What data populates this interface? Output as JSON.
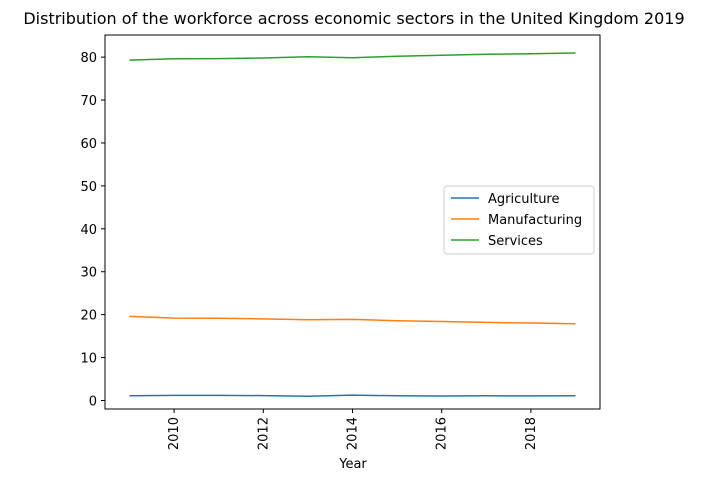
{
  "chart_data": {
    "type": "line",
    "title": "Distribution of the workforce across economic sectors in the United Kingdom 2019",
    "xlabel": "Year",
    "ylabel": "",
    "x": [
      2009,
      2010,
      2011,
      2012,
      2013,
      2014,
      2015,
      2016,
      2017,
      2018,
      2019
    ],
    "xlim": [
      2008.45,
      2019.55
    ],
    "ylim": [
      -1.98,
      85.15
    ],
    "x_ticks": [
      2010,
      2012,
      2014,
      2016,
      2018
    ],
    "y_ticks": [
      0,
      10,
      20,
      30,
      40,
      50,
      60,
      70,
      80
    ],
    "x_tick_rotation": "vertical",
    "grid": false,
    "legend_position": "center-right",
    "series": [
      {
        "name": "Agriculture",
        "color": "#1f77b4",
        "values": [
          1.1,
          1.2,
          1.2,
          1.15,
          1.0,
          1.25,
          1.1,
          1.05,
          1.1,
          1.08,
          1.1
        ]
      },
      {
        "name": "Manufacturing",
        "color": "#ff7f0e",
        "values": [
          19.6,
          19.2,
          19.15,
          19.0,
          18.8,
          18.9,
          18.6,
          18.4,
          18.2,
          18.05,
          17.9
        ]
      },
      {
        "name": "Services",
        "color": "#2ca02c",
        "values": [
          79.3,
          79.6,
          79.65,
          79.8,
          80.1,
          79.85,
          80.2,
          80.45,
          80.65,
          80.8,
          80.95
        ]
      }
    ]
  }
}
